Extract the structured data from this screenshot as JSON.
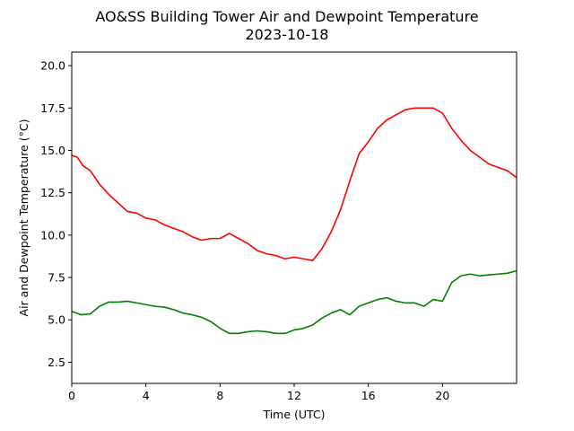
{
  "chart_data": {
    "type": "line",
    "title": "AO&SS Building Tower Air and Dewpoint Temperature",
    "subtitle": "2023-10-18",
    "xlabel": "Time (UTC)",
    "ylabel": "Air and Dewpoint Temperature (°C)",
    "xlim": [
      0,
      24
    ],
    "ylim": [
      1.25,
      20.8
    ],
    "xticks": [
      0,
      4,
      8,
      12,
      16,
      20
    ],
    "yticks": [
      2.5,
      5.0,
      7.5,
      10.0,
      12.5,
      15.0,
      17.5,
      20.0
    ],
    "grid": false,
    "series": [
      {
        "color": "#ff0000",
        "x": [
          0,
          0.3,
          0.6,
          1.0,
          1.5,
          2.0,
          2.5,
          3.0,
          3.5,
          4.0,
          4.5,
          5.0,
          5.5,
          6.0,
          6.5,
          7.0,
          7.5,
          8.0,
          8.5,
          9.0,
          9.5,
          10.0,
          10.5,
          11.0,
          11.5,
          12.0,
          12.5,
          13.0,
          13.5,
          14.0,
          14.5,
          15.0,
          15.5,
          16.0,
          16.5,
          17.0,
          17.5,
          18.0,
          18.5,
          19.0,
          19.5,
          20.0,
          20.5,
          21.0,
          21.5,
          22.0,
          22.5,
          23.0,
          23.5,
          24.0
        ],
        "values": [
          14.7,
          14.6,
          14.1,
          13.8,
          13.0,
          12.4,
          11.9,
          11.4,
          11.3,
          11.0,
          10.9,
          10.6,
          10.4,
          10.2,
          9.9,
          9.7,
          9.8,
          9.8,
          10.1,
          9.8,
          9.5,
          9.1,
          8.9,
          8.8,
          8.6,
          8.7,
          8.6,
          8.5,
          9.2,
          10.2,
          11.5,
          13.2,
          14.8,
          15.5,
          16.3,
          16.8,
          17.1,
          17.4,
          17.5,
          17.5,
          17.5,
          17.2,
          16.3,
          15.6,
          15.0,
          14.6,
          14.2,
          14.0,
          13.8,
          13.4
        ]
      },
      {
        "color": "#008000",
        "x": [
          0,
          0.5,
          1.0,
          1.5,
          2.0,
          2.5,
          3.0,
          3.5,
          4.0,
          4.5,
          5.0,
          5.5,
          6.0,
          6.5,
          7.0,
          7.5,
          8.0,
          8.5,
          9.0,
          9.5,
          10.0,
          10.5,
          11.0,
          11.5,
          12.0,
          12.5,
          13.0,
          13.5,
          14.0,
          14.5,
          15.0,
          15.5,
          16.0,
          16.5,
          17.0,
          17.5,
          18.0,
          18.5,
          19.0,
          19.5,
          20.0,
          20.5,
          21.0,
          21.5,
          22.0,
          22.5,
          23.0,
          23.5,
          24.0
        ],
        "values": [
          5.5,
          5.3,
          5.35,
          5.8,
          6.05,
          6.05,
          6.1,
          6.0,
          5.9,
          5.8,
          5.75,
          5.6,
          5.4,
          5.3,
          5.15,
          4.9,
          4.5,
          4.2,
          4.2,
          4.3,
          4.35,
          4.3,
          4.2,
          4.2,
          4.4,
          4.5,
          4.7,
          5.1,
          5.4,
          5.6,
          5.3,
          5.8,
          6.0,
          6.2,
          6.3,
          6.1,
          6.0,
          6.0,
          5.8,
          6.2,
          6.1,
          7.2,
          7.6,
          7.7,
          7.6,
          7.65,
          7.7,
          7.75,
          7.9
        ]
      }
    ]
  }
}
